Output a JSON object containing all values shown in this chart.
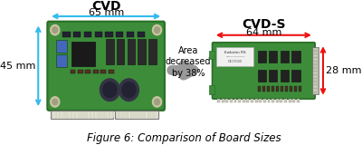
{
  "title": "Figure 6: Comparison of Board Sizes",
  "title_fontsize": 8.5,
  "cvd_label": "CVD",
  "cvd_width_label": "65 mm",
  "cvd_height_label": "45 mm",
  "cvds_label": "CVD-S",
  "cvds_width_label": "64 mm",
  "cvds_height_label": "28 mm",
  "middle_text": "Area\ndecreased\nby 38%",
  "arrow_color_cvd": "#33bbee",
  "arrow_color_cvds": "#ee1111",
  "middle_arrow_color": "#999999",
  "bg_color": "#ffffff",
  "label_fontsize": 10,
  "dim_fontsize": 8,
  "cvd_board_green": "#3d8c3a",
  "cvd_board_edge": "#2a6e28",
  "cvds_board_green": "#3d8c3a",
  "cvds_board_edge": "#2a6e28"
}
